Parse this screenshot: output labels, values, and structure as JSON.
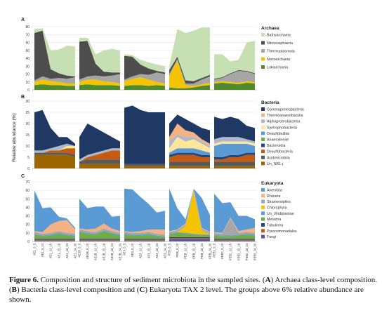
{
  "ylabel": "Relative abundance (%)",
  "caption": {
    "fig_label": "Figure 6.",
    "parts": [
      {
        "t": " Composition and structure of sediment microbiota in the sampled sites. (",
        "b": false
      },
      {
        "t": "A",
        "b": true
      },
      {
        "t": ") Archaea class-level composition. (",
        "b": false
      },
      {
        "t": "B",
        "b": true
      },
      {
        "t": ") Bacteria class-level composition and (",
        "b": false
      },
      {
        "t": "C",
        "b": true
      },
      {
        "t": ") Eukaryota TAX 2 level. The groups above 6% relative abundance are shown.",
        "b": false
      }
    ]
  },
  "chart_data": [
    {
      "type": "area",
      "panel_label": "A",
      "legend_title": "Archaea",
      "ylim": [
        0,
        80
      ],
      "yticks": [
        0,
        10,
        20,
        30,
        40,
        50,
        60,
        70,
        80
      ],
      "groups": 5,
      "points_per_group": 6,
      "series": [
        {
          "name": "Lokiarchaeia",
          "color": "#4e8a2e",
          "values": [
            6,
            7,
            6,
            6,
            5,
            5,
            6,
            7,
            6,
            6,
            6,
            5,
            5,
            6,
            6,
            5,
            6,
            5,
            3,
            2,
            2,
            3,
            5,
            6,
            8,
            9,
            8,
            7,
            9,
            8
          ]
        },
        {
          "name": "Nanoarchaeia",
          "color": "#f5c400",
          "values": [
            4,
            6,
            5,
            4,
            3,
            3,
            4,
            6,
            7,
            5,
            4,
            3,
            6,
            8,
            10,
            8,
            4,
            3,
            15,
            35,
            4,
            2,
            2,
            3,
            2,
            2,
            2,
            2,
            2,
            2
          ]
        },
        {
          "name": "Thermoplasmata",
          "color": "#a6a6a6",
          "values": [
            2,
            4,
            3,
            5,
            6,
            8,
            3,
            4,
            5,
            6,
            8,
            12,
            2,
            3,
            4,
            6,
            12,
            12,
            2,
            2,
            2,
            3,
            6,
            8,
            3,
            4,
            10,
            15,
            12,
            10
          ]
        },
        {
          "name": "Nitrososphaeria",
          "color": "#4d4d4d",
          "values": [
            60,
            58,
            12,
            6,
            4,
            1,
            48,
            45,
            15,
            6,
            4,
            2,
            30,
            25,
            12,
            8,
            2,
            2,
            5,
            3,
            4,
            3,
            2,
            2,
            1,
            1,
            1,
            1,
            1,
            1
          ]
        },
        {
          "name": "Bathyarchaeia",
          "color": "#c6e0b4",
          "values": [
            5,
            3,
            24,
            30,
            38,
            38,
            5,
            4,
            12,
            27,
            30,
            28,
            2,
            2,
            6,
            8,
            8,
            8,
            5,
            35,
            60,
            64,
            64,
            60,
            31,
            29,
            15,
            13,
            36,
            41
          ]
        }
      ]
    },
    {
      "type": "area",
      "panel_label": "B",
      "legend_title": "Bacteria",
      "ylim": [
        0,
        30
      ],
      "yticks": [
        0,
        5,
        10,
        15,
        20,
        25,
        30
      ],
      "groups": 5,
      "points_per_group": 6,
      "series": [
        {
          "name": "Un_NB1-j",
          "color": "#9c6500",
          "values": [
            6,
            6,
            6,
            6,
            6,
            5,
            2,
            2,
            2,
            2,
            2,
            2,
            1,
            1,
            1,
            1,
            1,
            1,
            1,
            1,
            1,
            1,
            1,
            1,
            1,
            1,
            1,
            1,
            1,
            1
          ]
        },
        {
          "name": "Acidimicrobiia",
          "color": "#595959",
          "values": [
            1,
            1,
            1,
            1,
            1,
            1,
            1,
            2,
            2,
            2,
            2,
            2,
            1,
            1,
            1,
            1,
            1,
            1,
            2,
            2,
            2,
            2,
            2,
            2,
            2,
            2,
            2,
            2,
            2,
            2
          ]
        },
        {
          "name": "Desulfobacteria",
          "color": "#c55a11",
          "values": [
            0,
            0,
            1,
            1,
            2,
            3,
            0,
            1,
            2,
            3,
            4,
            4,
            0,
            0,
            0,
            0,
            0,
            0,
            2,
            3,
            3,
            3,
            2,
            2,
            1,
            1,
            2,
            2,
            3,
            3
          ]
        },
        {
          "name": "Bacteroidia",
          "color": "#264478",
          "values": [
            0,
            0,
            0,
            0,
            0,
            0,
            0,
            0,
            0,
            0,
            0,
            0,
            0,
            0,
            0,
            0,
            0,
            0,
            1,
            1,
            1,
            1,
            1,
            1,
            1,
            1,
            1,
            1,
            1,
            1
          ]
        },
        {
          "name": "Anaerolineae",
          "color": "#70ad47",
          "values": [
            0,
            0,
            0,
            0,
            0,
            0,
            0,
            0,
            0,
            0,
            0,
            0,
            0,
            0,
            0,
            0,
            0,
            0,
            0,
            0,
            0,
            0,
            0,
            0,
            0,
            0,
            0,
            0,
            0,
            0
          ]
        },
        {
          "name": "Desulfobulbia",
          "color": "#5b9bd5",
          "values": [
            0,
            0,
            0,
            0,
            0,
            0,
            0,
            0,
            0,
            0,
            0,
            0,
            0,
            0,
            0,
            0,
            0,
            0,
            1,
            2,
            2,
            2,
            2,
            1,
            5,
            6,
            5,
            5,
            4,
            3
          ]
        },
        {
          "name": "Syntrophobacteria",
          "color": "#ffe699",
          "values": [
            0,
            0,
            0,
            0,
            1,
            1,
            0,
            0,
            0,
            0,
            0,
            0,
            0,
            0,
            0,
            0,
            0,
            0,
            2,
            5,
            3,
            4,
            3,
            2,
            1,
            1,
            1,
            1,
            1,
            1
          ]
        },
        {
          "name": "Alphaproteobacteria",
          "color": "#adb9ca",
          "values": [
            1,
            1,
            1,
            2,
            1,
            0,
            1,
            1,
            1,
            1,
            1,
            1,
            0,
            0,
            0,
            0,
            0,
            0,
            3,
            1,
            2,
            1,
            1,
            1,
            2,
            2,
            2,
            2,
            1,
            1
          ]
        },
        {
          "name": "Thermoanaerobaculia",
          "color": "#f4b183",
          "values": [
            0,
            0,
            0,
            0,
            0,
            0,
            0,
            0,
            0,
            0,
            0,
            0,
            0,
            0,
            0,
            0,
            0,
            0,
            2,
            5,
            3,
            2,
            1,
            1,
            0,
            0,
            0,
            0,
            0,
            0
          ]
        },
        {
          "name": "Gammaproteobacteria",
          "color": "#203864",
          "values": [
            17,
            18,
            9,
            4,
            3,
            1,
            10,
            14,
            11,
            8,
            5,
            3,
            25,
            26,
            24,
            23,
            23,
            23,
            6,
            4,
            5,
            4,
            5,
            6,
            10,
            8,
            9,
            8,
            6,
            6
          ]
        }
      ]
    },
    {
      "type": "area",
      "panel_label": "C",
      "legend_title": "Eukaryota",
      "ylim": [
        0,
        70
      ],
      "yticks": [
        0,
        10,
        20,
        30,
        40,
        50,
        60,
        70
      ],
      "groups": 5,
      "points_per_group": 6,
      "series": [
        {
          "name": "Fungi",
          "color": "#5a5a9a",
          "values": [
            1,
            1,
            1,
            1,
            1,
            1,
            1,
            1,
            1,
            1,
            1,
            1,
            1,
            1,
            1,
            1,
            1,
            1,
            3,
            3,
            3,
            3,
            3,
            3,
            1,
            1,
            1,
            1,
            1,
            1
          ]
        },
        {
          "name": "Pyrenomonadales",
          "color": "#c55a11",
          "values": [
            1,
            1,
            1,
            1,
            1,
            1,
            1,
            1,
            1,
            1,
            1,
            1,
            1,
            1,
            1,
            1,
            1,
            1,
            1,
            1,
            1,
            1,
            1,
            1,
            1,
            1,
            1,
            1,
            1,
            1
          ]
        },
        {
          "name": "Tubulinea",
          "color": "#264478",
          "values": [
            1,
            1,
            1,
            1,
            1,
            1,
            1,
            1,
            1,
            1,
            1,
            1,
            1,
            1,
            1,
            1,
            1,
            1,
            1,
            1,
            1,
            1,
            1,
            1,
            1,
            1,
            1,
            1,
            1,
            1
          ]
        },
        {
          "name": "Metazoa",
          "color": "#70ad47",
          "values": [
            5,
            3,
            4,
            6,
            4,
            3,
            8,
            6,
            5,
            9,
            6,
            4,
            5,
            4,
            4,
            5,
            3,
            2,
            3,
            5,
            4,
            3,
            2,
            2,
            4,
            3,
            3,
            4,
            5,
            4
          ]
        },
        {
          "name": "Un_Viridiplantae",
          "color": "#5b9bd5",
          "values": [
            1,
            1,
            1,
            1,
            1,
            1,
            1,
            1,
            1,
            1,
            1,
            1,
            1,
            1,
            1,
            1,
            1,
            1,
            1,
            1,
            1,
            1,
            1,
            1,
            1,
            1,
            1,
            1,
            1,
            1
          ]
        },
        {
          "name": "Chlorophyta",
          "color": "#f5c400",
          "values": [
            0,
            0,
            0,
            0,
            0,
            0,
            0,
            0,
            0,
            0,
            0,
            0,
            0,
            0,
            0,
            0,
            0,
            0,
            0,
            0,
            8,
            50,
            5,
            0,
            0,
            0,
            0,
            0,
            0,
            0
          ]
        },
        {
          "name": "Stramenopiles",
          "color": "#a6a6a6",
          "values": [
            2,
            2,
            2,
            2,
            2,
            2,
            2,
            2,
            2,
            2,
            2,
            2,
            2,
            2,
            2,
            2,
            2,
            2,
            2,
            2,
            2,
            2,
            2,
            2,
            2,
            2,
            20,
            2,
            2,
            2
          ]
        },
        {
          "name": "Rhizaria",
          "color": "#f4b183",
          "values": [
            1,
            2,
            10,
            12,
            15,
            5,
            1,
            2,
            4,
            6,
            3,
            2,
            1,
            1,
            2,
            3,
            5,
            6,
            1,
            1,
            1,
            1,
            1,
            1,
            1,
            1,
            1,
            2,
            3,
            6
          ]
        },
        {
          "name": "Alveolata",
          "color": "#5b9bd5",
          "values": [
            48,
            28,
            20,
            5,
            2,
            2,
            35,
            25,
            26,
            20,
            14,
            18,
            50,
            50,
            40,
            30,
            20,
            22,
            50,
            25,
            5,
            0,
            35,
            20,
            45,
            35,
            18,
            18,
            16,
            10
          ]
        }
      ]
    }
  ],
  "x_ticks": [
    "AE1_0_5",
    "AE1_5_10",
    "AE1_10_15",
    "AE1_15_18",
    "AE1_18_24",
    "AE1_24_30",
    "AE2B_0_5",
    "AE2B_5_10",
    "AE2B_10_15",
    "AE2B_15_18",
    "AE2B_18_24",
    "AE2B_24_30",
    "AE3_0_5",
    "AE3_5_10",
    "AE3_10_15",
    "AE3_15_18",
    "AE3_18_24",
    "AE3_24_30",
    "PEB_0_5",
    "PEB_5_10",
    "PEB_10_15",
    "PEB_15_18",
    "PEB_18_24",
    "PEB_24_30",
    "PEB2_0_5",
    "PEB2_5_10",
    "PEB2_10_15",
    "PEB2_15_18",
    "PEB2_18_24",
    "PEB2_24_30"
  ]
}
